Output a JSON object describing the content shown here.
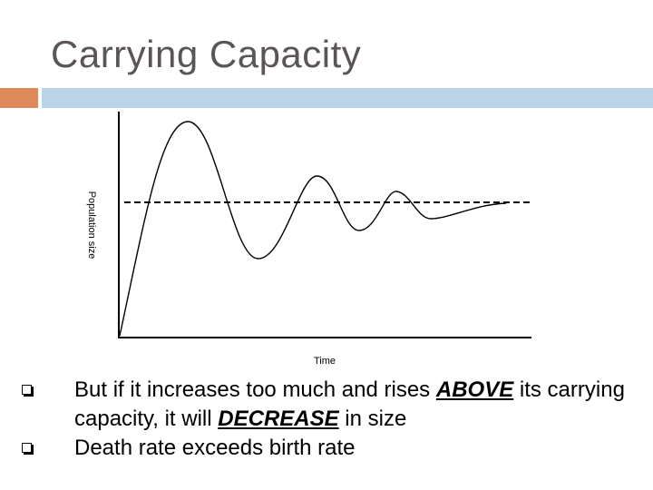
{
  "slide": {
    "title": "Carrying Capacity",
    "accent_colors": {
      "square": "#de8a5a",
      "bar": "#bcd3e6"
    }
  },
  "graph": {
    "y_axis_label": "Population size",
    "x_axis_label": "Time",
    "carrying_capacity_line": "dashed"
  },
  "bullets": [
    {
      "icon": "square-bullet-icon",
      "parts": [
        {
          "text": "But if it increases too much and rises ",
          "emphasis": false
        },
        {
          "text": "ABOVE",
          "emphasis": true
        },
        {
          "text": " its carrying capacity, it will ",
          "emphasis": false
        },
        {
          "text": "DECREASE",
          "emphasis": true
        },
        {
          "text": " in size",
          "emphasis": false
        }
      ]
    },
    {
      "icon": "square-bullet-icon",
      "parts": [
        {
          "text": "Death rate exceeds birth rate",
          "emphasis": false
        }
      ]
    }
  ]
}
